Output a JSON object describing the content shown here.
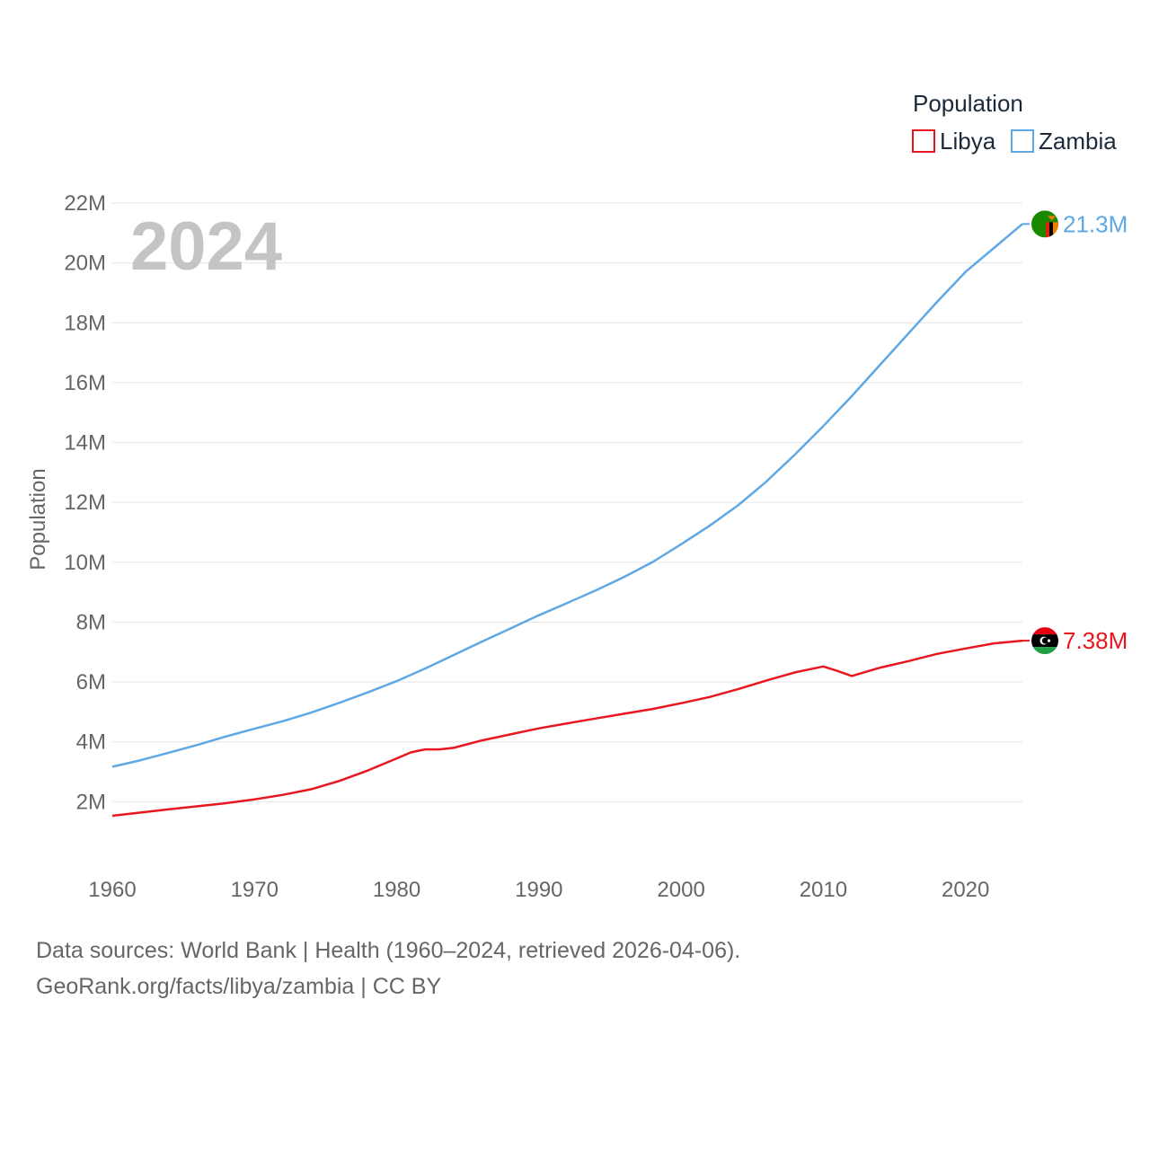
{
  "chart_data": {
    "type": "line",
    "title": "",
    "year_label": "2024",
    "xlabel": "",
    "ylabel": "Population",
    "xlim": [
      1960,
      2024
    ],
    "ylim": [
      0,
      22000000
    ],
    "x_ticks": [
      1960,
      1970,
      1980,
      1990,
      2000,
      2010,
      2020
    ],
    "x_tick_labels": [
      "1960",
      "1970",
      "1980",
      "1990",
      "2000",
      "2010",
      "2020"
    ],
    "y_ticks": [
      2000000,
      4000000,
      6000000,
      8000000,
      10000000,
      12000000,
      14000000,
      16000000,
      18000000,
      20000000,
      22000000
    ],
    "y_tick_labels": [
      "2M",
      "4M",
      "6M",
      "8M",
      "10M",
      "12M",
      "14M",
      "16M",
      "18M",
      "20M",
      "22M"
    ],
    "grid": true,
    "legend": {
      "title": "Population",
      "position": "top-right",
      "entries": [
        "Libya",
        "Zambia"
      ]
    },
    "series": [
      {
        "name": "Libya",
        "color": "#e8171f",
        "end_label": "7.38M",
        "flag_icon": "libya-flag-icon",
        "points": [
          [
            1960,
            1530000
          ],
          [
            1962,
            1640000
          ],
          [
            1964,
            1750000
          ],
          [
            1966,
            1850000
          ],
          [
            1968,
            1950000
          ],
          [
            1970,
            2080000
          ],
          [
            1972,
            2230000
          ],
          [
            1974,
            2420000
          ],
          [
            1976,
            2700000
          ],
          [
            1978,
            3050000
          ],
          [
            1980,
            3450000
          ],
          [
            1981,
            3650000
          ],
          [
            1982,
            3750000
          ],
          [
            1983,
            3750000
          ],
          [
            1984,
            3800000
          ],
          [
            1986,
            4050000
          ],
          [
            1988,
            4250000
          ],
          [
            1990,
            4450000
          ],
          [
            1992,
            4620000
          ],
          [
            1994,
            4780000
          ],
          [
            1996,
            4940000
          ],
          [
            1998,
            5100000
          ],
          [
            2000,
            5290000
          ],
          [
            2002,
            5500000
          ],
          [
            2004,
            5760000
          ],
          [
            2006,
            6050000
          ],
          [
            2008,
            6320000
          ],
          [
            2010,
            6520000
          ],
          [
            2011,
            6370000
          ],
          [
            2012,
            6200000
          ],
          [
            2014,
            6480000
          ],
          [
            2016,
            6700000
          ],
          [
            2018,
            6940000
          ],
          [
            2020,
            7120000
          ],
          [
            2022,
            7290000
          ],
          [
            2024,
            7380000
          ]
        ]
      },
      {
        "name": "Zambia",
        "color": "#5da8e5",
        "end_label": "21.3M",
        "flag_icon": "zambia-flag-icon",
        "points": [
          [
            1960,
            3170000
          ],
          [
            1962,
            3390000
          ],
          [
            1964,
            3640000
          ],
          [
            1966,
            3900000
          ],
          [
            1968,
            4180000
          ],
          [
            1970,
            4440000
          ],
          [
            1972,
            4690000
          ],
          [
            1974,
            4980000
          ],
          [
            1976,
            5310000
          ],
          [
            1978,
            5660000
          ],
          [
            1980,
            6030000
          ],
          [
            1982,
            6450000
          ],
          [
            1984,
            6900000
          ],
          [
            1986,
            7350000
          ],
          [
            1988,
            7790000
          ],
          [
            1990,
            8230000
          ],
          [
            1992,
            8640000
          ],
          [
            1994,
            9060000
          ],
          [
            1996,
            9510000
          ],
          [
            1998,
            10010000
          ],
          [
            2000,
            10600000
          ],
          [
            2002,
            11220000
          ],
          [
            2004,
            11900000
          ],
          [
            2006,
            12700000
          ],
          [
            2008,
            13600000
          ],
          [
            2010,
            14550000
          ],
          [
            2012,
            15550000
          ],
          [
            2014,
            16600000
          ],
          [
            2016,
            17650000
          ],
          [
            2018,
            18700000
          ],
          [
            2020,
            19700000
          ],
          [
            2022,
            20500000
          ],
          [
            2024,
            21300000
          ]
        ]
      }
    ]
  },
  "footer": {
    "line1": "Data sources: World Bank | Health (1960–2024, retrieved 2026-04-06).",
    "line2": "GeoRank.org/facts/libya/zambia | CC BY"
  }
}
